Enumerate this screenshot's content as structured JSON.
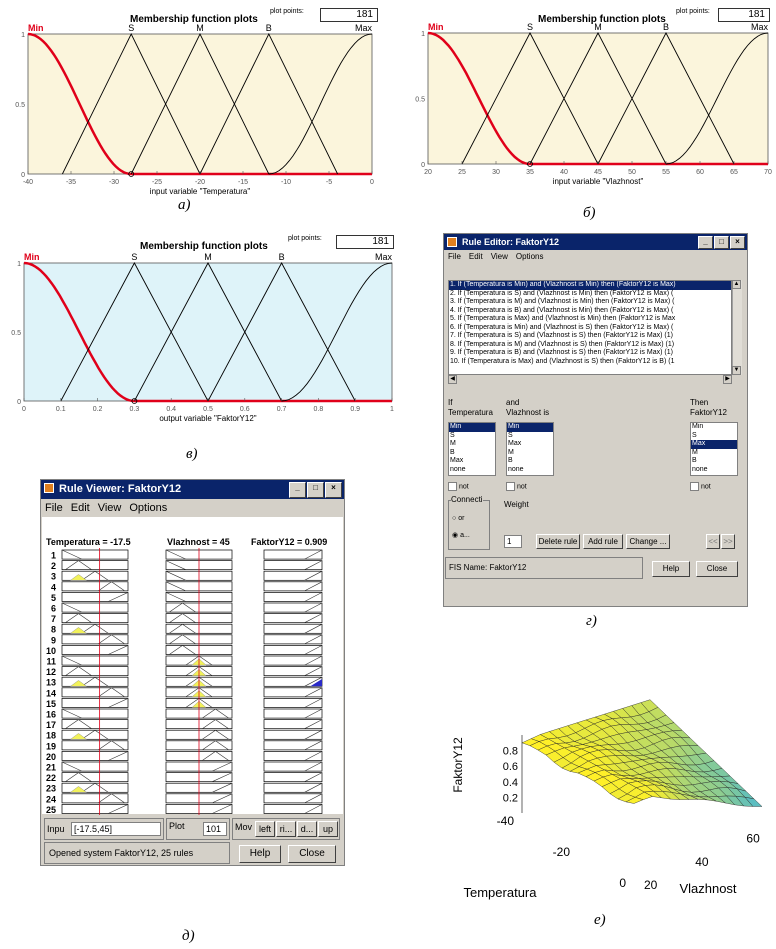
{
  "panels": {
    "a": {
      "title": "Membership function plots",
      "plot_points_label": "plot points:",
      "plot_points_value": "181",
      "mf_labels": [
        "Min",
        "S",
        "M",
        "B",
        "Max"
      ],
      "xlabel": "input variable \"Temperatura\"",
      "x_ticks": [
        "-40",
        "-35",
        "-30",
        "-25",
        "-20",
        "-15",
        "-10",
        "-5",
        "0"
      ],
      "y_ticks": [
        "1",
        "0.5",
        "0"
      ],
      "caption": "а)"
    },
    "b": {
      "title": "Membership function plots",
      "plot_points_label": "plot points:",
      "plot_points_value": "181",
      "mf_labels": [
        "Min",
        "S",
        "M",
        "B",
        "Max"
      ],
      "xlabel": "input variable \"Vlazhnost\"",
      "x_ticks": [
        "20",
        "25",
        "30",
        "35",
        "40",
        "45",
        "50",
        "55",
        "60",
        "65",
        "70"
      ],
      "y_ticks": [
        "1",
        "0.5",
        "0"
      ],
      "caption": "б)"
    },
    "c": {
      "title": "Membership function plots",
      "plot_points_label": "plot points:",
      "plot_points_value": "181",
      "mf_labels": [
        "Min",
        "S",
        "M",
        "B",
        "Max"
      ],
      "xlabel": "output variable \"FaktorY12\"",
      "x_ticks": [
        "0",
        "0.1",
        "0.2",
        "0.3",
        "0.4",
        "0.5",
        "0.6",
        "0.7",
        "0.8",
        "0.9",
        "1"
      ],
      "y_ticks": [
        "1",
        "0.5",
        "0"
      ],
      "caption": "в)"
    }
  },
  "rule_editor": {
    "title": "Rule Editor: FaktorY12",
    "menu": [
      "File",
      "Edit",
      "View",
      "Options"
    ],
    "rules": [
      "1. If (Temperatura is Min) and (Vlazhnost is Min) then (FaktorY12 is Max)",
      "2. If (Temperatura is S) and (Vlazhnost is Min) then (FaktorY12 is Max) (",
      "3. If (Temperatura is M) and (Vlazhnost is Min) then (FaktorY12 is Max) (",
      "4. If (Temperatura is B) and (Vlazhnost is Min) then (FaktorY12 is Max) (",
      "5. If (Temperatura is Max) and (Vlazhnost is Min) then (FaktorY12 is Max",
      "6. If (Temperatura is Min) and (Vlazhnost is S) then (FaktorY12 is Max) (",
      "7. If (Temperatura is S) and (Vlazhnost is S) then (FaktorY12 is Max) (1)",
      "8. If (Temperatura is M) and (Vlazhnost is S) then (FaktorY12 is Max) (1)",
      "9. If (Temperatura is B) and (Vlazhnost is S) then (FaktorY12 is Max) (1)",
      "10. If (Temperatura is Max) and (Vlazhnost is S) then (FaktorY12 is B) (1"
    ],
    "if_label": "If",
    "temp_label": "Temperatura",
    "and_label": "and",
    "vlaz_label": "Vlazhnost is",
    "then_label": "Then",
    "out_label": "FaktorY12",
    "temp_options": [
      "Min",
      "S",
      "M",
      "B",
      "Max",
      "none"
    ],
    "vlaz_options": [
      "Min",
      "S",
      "Max",
      "M",
      "B",
      "none"
    ],
    "out_options": [
      "Min",
      "S",
      "Max",
      "M",
      "B",
      "none"
    ],
    "not_label": "not",
    "connection_label": "Connecti",
    "or_label": "or",
    "and_opt_label": "a...",
    "weight_label": "Weight",
    "weight_value": "1",
    "delete_rule": "Delete rule",
    "add_rule": "Add rule",
    "change": "Change ...",
    "prev": "<<",
    "next": ">>",
    "status": "FIS Name: FaktorY12",
    "help": "Help",
    "close": "Close",
    "caption": "г)"
  },
  "rule_viewer": {
    "title": "Rule Viewer: FaktorY12",
    "menu": [
      "File",
      "Edit",
      "View",
      "Options"
    ],
    "temp_header": "Temperatura = -17.5",
    "vlaz_header": "Vlazhnost = 45",
    "out_header": "FaktorY12 = 0.909",
    "row_numbers": [
      "1",
      "2",
      "3",
      "4",
      "5",
      "6",
      "7",
      "8",
      "9",
      "10",
      "11",
      "12",
      "13",
      "14",
      "15",
      "16",
      "17",
      "18",
      "19",
      "20",
      "21",
      "22",
      "23",
      "24",
      "25"
    ],
    "input_label": "Inpu",
    "input_value": "[-17.5,45]",
    "plot_label": "Plot",
    "plot_value": "101",
    "move_label": "Mov",
    "move_buttons": [
      "left",
      "ri...",
      "d...",
      "up"
    ],
    "status": "Opened system FaktorY12, 25 rules",
    "help": "Help",
    "close": "Close",
    "caption": "д)"
  },
  "surface": {
    "zlabel": "FaktorY12",
    "z_ticks": [
      "0.8",
      "0.6",
      "0.4",
      "0.2"
    ],
    "x_label": "Temperatura",
    "x_ticks": [
      "-40",
      "-20",
      "0"
    ],
    "y_label": "Vlazhnost",
    "y_ticks": [
      "20",
      "40",
      "60"
    ],
    "caption": "е)"
  },
  "colors": {
    "plot_bg": "#fbf5dc",
    "plot_bg_c": "#def3f9",
    "red_mf": "#e0001a",
    "title_bar": "#0a246a",
    "window_bg": "#d4d0c8"
  }
}
